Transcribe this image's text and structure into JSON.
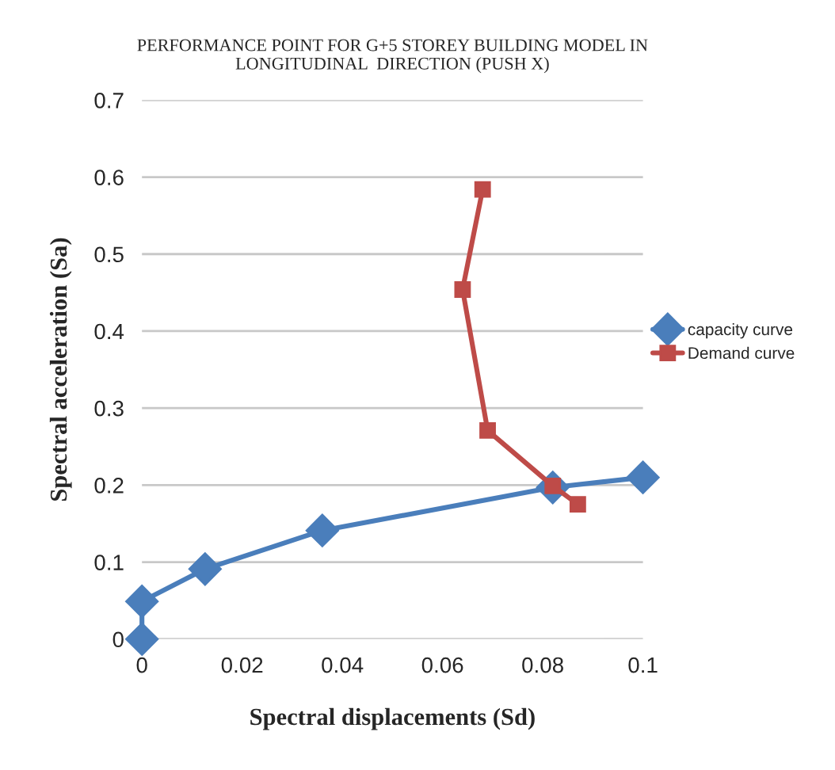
{
  "chart_data": {
    "type": "line",
    "title": "PERFORMANCE POINT FOR G+5 STOREY BUILDING MODEL IN\nLONGITUDINAL  DIRECTION (PUSH X)",
    "xlabel": "Spectral displacements (Sd)",
    "ylabel": "Spectral acceleration (Sa)",
    "series": [
      {
        "name": "capacity curve",
        "color": "#4a7ebb",
        "marker": "diamond",
        "x": [
          0,
          0,
          0.0126,
          0.036,
          0.082,
          0.1
        ],
        "values": [
          0,
          0.049,
          0.091,
          0.141,
          0.197,
          0.21
        ]
      },
      {
        "name": "Demand curve",
        "color": "#be4b48",
        "marker": "square",
        "x": [
          0.068,
          0.064,
          0.069,
          0.082,
          0.087
        ],
        "values": [
          0.584,
          0.454,
          0.271,
          0.199,
          0.175
        ]
      }
    ],
    "xlim": [
      0,
      0.1
    ],
    "xticks": [
      0,
      0.02,
      0.04,
      0.06,
      0.08,
      0.1
    ],
    "ylim": [
      0,
      0.7
    ],
    "yticks": [
      0,
      0.1,
      0.2,
      0.3,
      0.4,
      0.5,
      0.6,
      0.7
    ],
    "grid": "y",
    "legend": "right",
    "line_style": "solid"
  }
}
